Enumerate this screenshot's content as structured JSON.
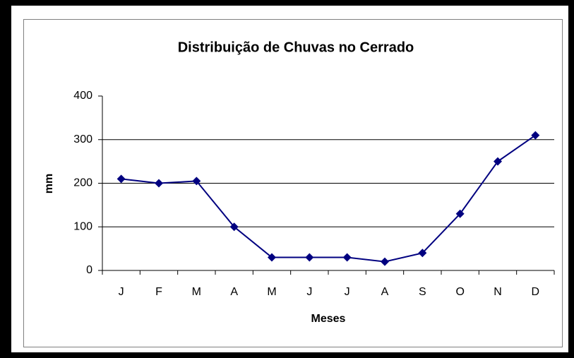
{
  "chart_data": {
    "type": "line",
    "title": "Distribuição de Chuvas no Cerrado",
    "xlabel": "Meses",
    "ylabel": "mm",
    "categories": [
      "J",
      "F",
      "M",
      "A",
      "M",
      "J",
      "J",
      "A",
      "S",
      "O",
      "N",
      "D"
    ],
    "series": [
      {
        "name": "mm",
        "color": "#000080",
        "values": [
          210,
          200,
          205,
          100,
          30,
          30,
          30,
          20,
          40,
          130,
          250,
          310
        ]
      }
    ],
    "ylim": [
      0,
      400
    ],
    "yticks": [
      0,
      100,
      200,
      300,
      400
    ],
    "grid": true
  }
}
